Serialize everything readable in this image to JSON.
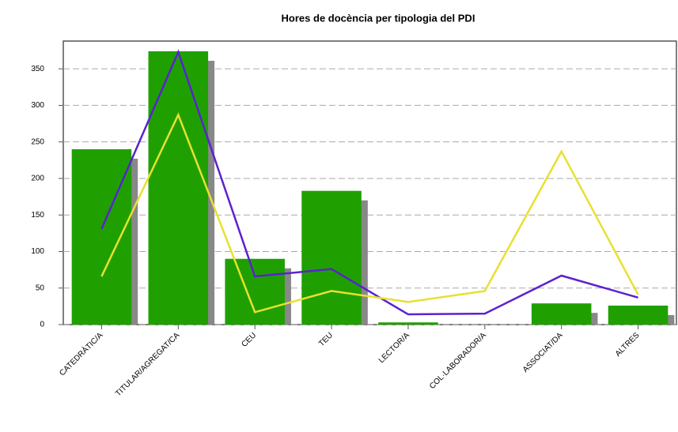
{
  "chart_data": {
    "type": "bar",
    "title": "Hores de docència per tipologia del PDI",
    "categories": [
      "CATEDRÀTIC/A",
      "TITULAR/AGREGAT/CA",
      "CEU",
      "TEU",
      "LECTOR/A",
      "COL·LABORADOR/A",
      "ASSOCIAT/DA",
      "ALTRES"
    ],
    "values": [
      240,
      374,
      90,
      183,
      3,
      0,
      29,
      26
    ],
    "color": "#1fa000",
    "series": [
      {
        "color": "#5a22d0",
        "values": [
          131,
          373,
          66,
          76,
          14,
          15,
          67,
          37
        ]
      },
      {
        "color": "#e8e030",
        "values": [
          66,
          287,
          17,
          46,
          31,
          46,
          237,
          41
        ]
      }
    ],
    "ylim": [
      0,
      388
    ],
    "yticks": [
      0,
      50,
      100,
      150,
      200,
      250,
      300,
      350
    ],
    "grid": true
  }
}
